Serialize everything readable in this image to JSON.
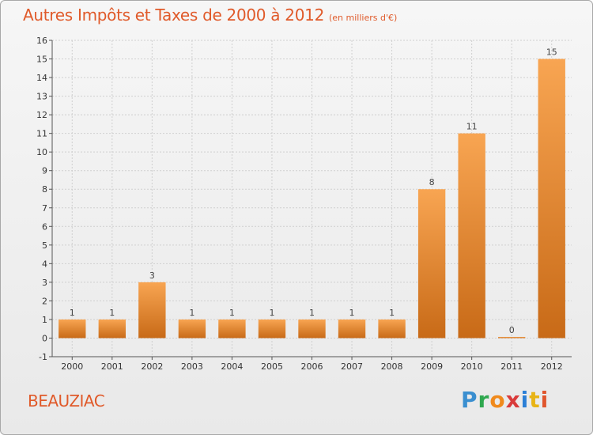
{
  "header": {
    "title": "Autres Impôts et Taxes de 2000 à 2012",
    "unit_note": "(en milliers d'€)"
  },
  "footer": {
    "commune": "BEAUZIAC",
    "logo": {
      "letters": [
        "P",
        "r",
        "o",
        "x",
        "i",
        "t",
        "i"
      ],
      "colors": [
        "#3a8fd0",
        "#2fa84f",
        "#f08a1c",
        "#d93b3b",
        "#2b7fd6",
        "#e8b416",
        "#e0552c"
      ]
    }
  },
  "colors": {
    "bar_top": "#f8a552",
    "bar_bottom": "#c86a17",
    "title": "#e05a2a",
    "grid": "#cfcfcf"
  },
  "chart_data": {
    "type": "bar",
    "title": "Autres Impôts et Taxes de 2000 à 2012",
    "subtitle": "(en milliers d'€)",
    "xlabel": "",
    "ylabel": "",
    "categories": [
      "2000",
      "2001",
      "2002",
      "2003",
      "2004",
      "2005",
      "2006",
      "2007",
      "2008",
      "2009",
      "2010",
      "2011",
      "2012"
    ],
    "values": [
      1,
      1,
      3,
      1,
      1,
      1,
      1,
      1,
      1,
      8,
      11,
      0,
      15
    ],
    "ylim": [
      -1,
      16
    ],
    "yticks": [
      -1,
      0,
      1,
      2,
      3,
      4,
      5,
      6,
      7,
      8,
      9,
      10,
      11,
      12,
      13,
      14,
      15,
      16
    ],
    "grid": true,
    "legend": "none"
  }
}
